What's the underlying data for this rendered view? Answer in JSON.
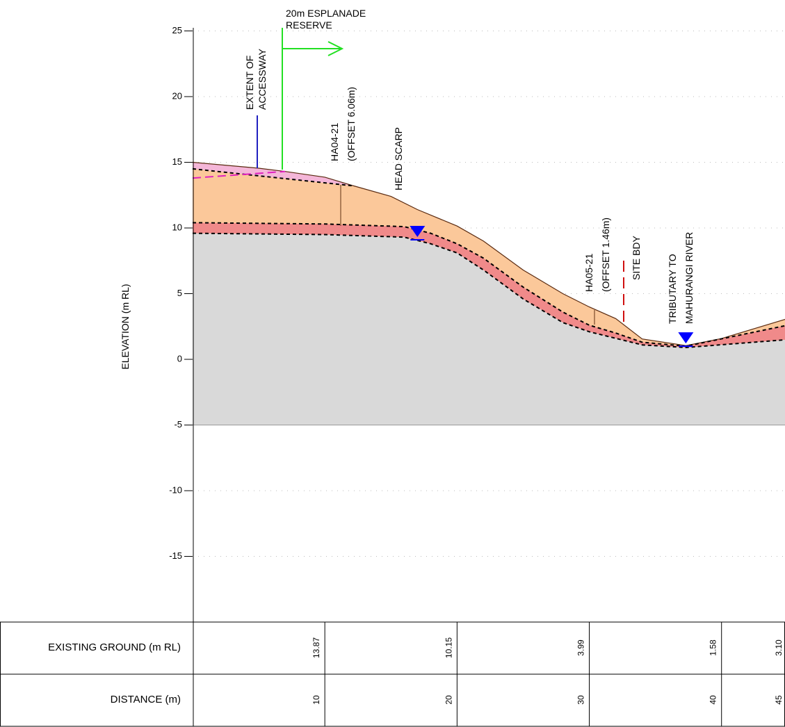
{
  "axis": {
    "label": "ELEVATION (m RL)",
    "ylim": [
      -20,
      25
    ],
    "xlim": [
      0,
      44.8
    ],
    "yticks": [
      25,
      20,
      15,
      10,
      5,
      0,
      -5,
      -10,
      -15
    ]
  },
  "profile": {
    "base": -5,
    "surface": {
      "x": [
        0,
        5,
        7,
        10,
        12.2,
        15,
        17,
        20,
        22,
        25,
        28,
        30,
        32,
        34,
        37.3,
        40,
        45
      ],
      "y": [
        15.0,
        14.55,
        14.3,
        13.87,
        13.2,
        12.4,
        11.4,
        10.15,
        9.0,
        6.8,
        5.0,
        3.99,
        3.1,
        1.55,
        1.05,
        1.58,
        3.1
      ]
    },
    "fill_base": {
      "x": [
        0,
        12.2
      ],
      "y": [
        14.5,
        13.2
      ]
    },
    "fill_line": {
      "x": [
        0,
        7
      ],
      "y": [
        13.8,
        14.3
      ]
    },
    "orange_base": {
      "x": [
        0,
        10,
        16,
        18,
        20,
        22,
        25,
        28,
        30,
        32,
        34,
        37.3,
        45
      ],
      "y": [
        10.4,
        10.3,
        10.1,
        9.6,
        8.8,
        7.7,
        5.5,
        3.6,
        2.6,
        2.0,
        1.3,
        1.0,
        2.6
      ]
    },
    "red_base": {
      "x": [
        0,
        10,
        16,
        18,
        20,
        22,
        25,
        28,
        30,
        32,
        34,
        37.3,
        45
      ],
      "y": [
        9.6,
        9.5,
        9.3,
        8.8,
        8.1,
        6.8,
        4.6,
        2.8,
        2.1,
        1.6,
        1.1,
        0.9,
        1.5
      ]
    },
    "water": {
      "x": [
        17,
        37.3
      ],
      "y": [
        9.1,
        1.0
      ]
    }
  },
  "annotations": {
    "accessway": [
      "EXTENT OF",
      "ACCESSWAY"
    ],
    "esplanade": [
      "20m ESPLANADE",
      "RESERVE"
    ],
    "ha04": [
      "HA04-21",
      "(OFFSET 6.06m)"
    ],
    "scarp": [
      "HEAD SCARP"
    ],
    "ha05": [
      "HA05-21",
      "(OFFSET 1.46m)"
    ],
    "site": [
      "SITE BDY"
    ],
    "tributary": [
      "TRIBUTARY TO",
      "MAHURANGI RIVER"
    ]
  },
  "table": {
    "rows": [
      {
        "label": "EXISTING GROUND (m RL)",
        "values": [
          "13.87",
          "10.15",
          "3.99",
          "1.58",
          "3.10"
        ]
      },
      {
        "label": "DISTANCE (m)",
        "values": [
          10,
          20,
          30,
          40,
          45
        ]
      }
    ]
  }
}
